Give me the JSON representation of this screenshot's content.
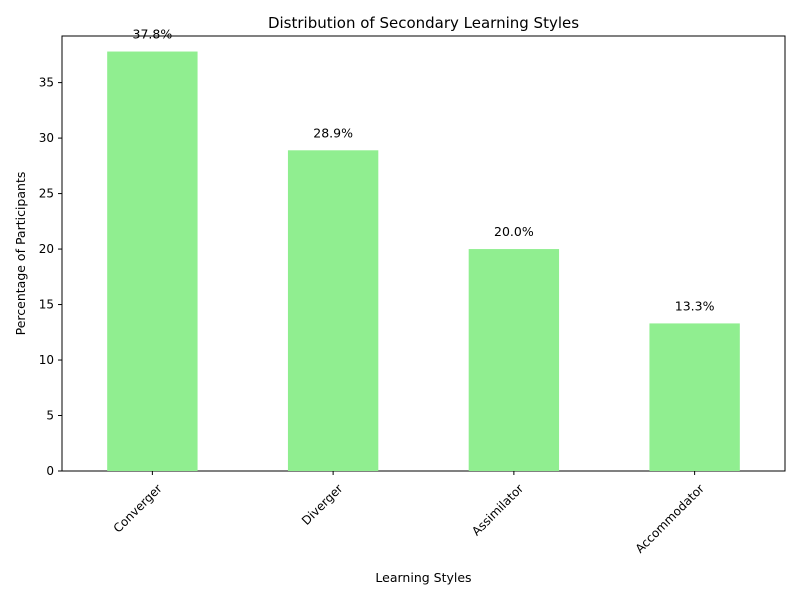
{
  "chart_data": {
    "type": "bar",
    "title": "Distribution of Secondary Learning Styles",
    "xlabel": "Learning Styles",
    "ylabel": "Percentage of Participants",
    "categories": [
      "Converger",
      "Diverger",
      "Assimilator",
      "Accommodator"
    ],
    "values": [
      37.8,
      28.9,
      20.0,
      13.3
    ],
    "data_labels": [
      "37.8%",
      "28.9%",
      "20.0%",
      "13.3%"
    ],
    "ylim": [
      0,
      39.2
    ],
    "yticks": [
      0,
      5,
      10,
      15,
      20,
      25,
      30,
      35
    ],
    "ytick_labels": [
      "0",
      "5",
      "10",
      "15",
      "20",
      "25",
      "30",
      "35"
    ],
    "grid": false,
    "legend": "none",
    "bar_color": "#90ee90",
    "x_tick_rotation": 45
  }
}
